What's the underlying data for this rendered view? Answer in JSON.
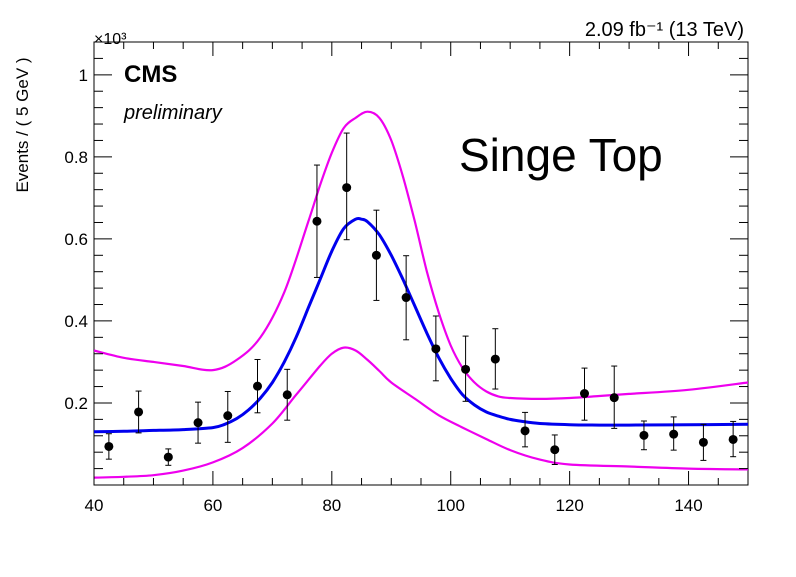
{
  "chart_data": {
    "type": "scatter",
    "title": "",
    "xlabel": "",
    "ylabel": "Events / ( 5 GeV )",
    "y_multiplier_label": "×10³",
    "xlim": [
      40,
      150
    ],
    "ylim": [
      0,
      1.08
    ],
    "x_ticks": [
      40,
      60,
      80,
      100,
      120,
      140
    ],
    "y_ticks": [
      0.2,
      0.4,
      0.6,
      0.8,
      1
    ],
    "annotations": {
      "lumi": "2.09 fb⁻¹ (13 TeV)",
      "experiment": "CMS",
      "status": "preliminary",
      "process": "Singe Top"
    },
    "points": {
      "x": [
        42.5,
        47.5,
        52.5,
        57.5,
        62.5,
        67.5,
        72.5,
        77.5,
        82.5,
        87.5,
        92.5,
        97.5,
        102.5,
        107.5,
        112.5,
        117.5,
        122.5,
        127.5,
        132.5,
        137.5,
        142.5,
        147.5
      ],
      "y": [
        0.094,
        0.178,
        0.068,
        0.152,
        0.169,
        0.241,
        0.22,
        0.643,
        0.725,
        0.56,
        0.457,
        0.332,
        0.282,
        0.307,
        0.132,
        0.086,
        0.223,
        0.213,
        0.121,
        0.124,
        0.104,
        0.111
      ],
      "err_low": [
        0.031,
        0.051,
        0.02,
        0.05,
        0.065,
        0.065,
        0.062,
        0.137,
        0.127,
        0.11,
        0.103,
        0.078,
        0.078,
        0.073,
        0.039,
        0.036,
        0.065,
        0.075,
        0.035,
        0.039,
        0.044,
        0.042
      ],
      "err_high": [
        0.031,
        0.051,
        0.02,
        0.05,
        0.059,
        0.065,
        0.062,
        0.137,
        0.133,
        0.11,
        0.102,
        0.08,
        0.081,
        0.074,
        0.045,
        0.036,
        0.062,
        0.077,
        0.035,
        0.042,
        0.044,
        0.044
      ]
    },
    "series": [
      {
        "color": "#0000ee",
        "style": "fit",
        "x": [
          40,
          45,
          50,
          55,
          60,
          62,
          64,
          66,
          68,
          70,
          72,
          74,
          76,
          78,
          80,
          82,
          84,
          85,
          86,
          88,
          90,
          92,
          94,
          96,
          98,
          100,
          102,
          104,
          106,
          108,
          110,
          112,
          115,
          120,
          125,
          130,
          140,
          150
        ],
        "y": [
          0.13,
          0.131,
          0.133,
          0.135,
          0.14,
          0.148,
          0.162,
          0.183,
          0.212,
          0.25,
          0.3,
          0.36,
          0.43,
          0.5,
          0.57,
          0.625,
          0.648,
          0.648,
          0.642,
          0.61,
          0.56,
          0.5,
          0.435,
          0.37,
          0.31,
          0.26,
          0.22,
          0.195,
          0.178,
          0.168,
          0.16,
          0.155,
          0.15,
          0.147,
          0.146,
          0.146,
          0.147,
          0.148
        ]
      },
      {
        "color": "#ee00ee",
        "style": "upper-band",
        "x": [
          40,
          45,
          50,
          55,
          60,
          64,
          68,
          72,
          76,
          78,
          80,
          82,
          84,
          86,
          88,
          90,
          92,
          94,
          96,
          98,
          100,
          102,
          104,
          106,
          108,
          110,
          115,
          120,
          125,
          130,
          140,
          150
        ],
        "y": [
          0.328,
          0.31,
          0.3,
          0.29,
          0.28,
          0.305,
          0.36,
          0.47,
          0.64,
          0.73,
          0.81,
          0.87,
          0.895,
          0.91,
          0.895,
          0.84,
          0.75,
          0.64,
          0.52,
          0.42,
          0.34,
          0.285,
          0.25,
          0.228,
          0.216,
          0.212,
          0.21,
          0.212,
          0.217,
          0.222,
          0.232,
          0.25
        ]
      },
      {
        "color": "#ee00ee",
        "style": "lower-band",
        "x": [
          40,
          45,
          50,
          55,
          60,
          65,
          70,
          74,
          78,
          80,
          82,
          84,
          86,
          88,
          90,
          94,
          98,
          102,
          106,
          110,
          115,
          120,
          130,
          140,
          150
        ],
        "y": [
          0.018,
          0.02,
          0.024,
          0.035,
          0.055,
          0.09,
          0.15,
          0.22,
          0.29,
          0.32,
          0.335,
          0.328,
          0.305,
          0.278,
          0.25,
          0.21,
          0.17,
          0.14,
          0.112,
          0.085,
          0.062,
          0.05,
          0.045,
          0.04,
          0.038
        ]
      }
    ],
    "grid": false,
    "legend": "none"
  }
}
